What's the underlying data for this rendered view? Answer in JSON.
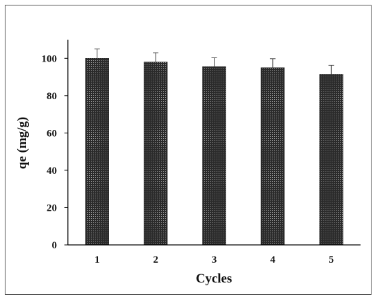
{
  "chart_data": {
    "type": "bar",
    "categories": [
      "1",
      "2",
      "3",
      "4",
      "5"
    ],
    "values": [
      100,
      98,
      95.5,
      95,
      91.5
    ],
    "error": [
      5,
      5,
      4.8,
      4.8,
      4.8
    ],
    "xlabel": "Cycles",
    "ylabel": "qe (mg/g)",
    "ylim": [
      0,
      110
    ],
    "yticks": [
      0,
      20,
      40,
      60,
      80,
      100
    ],
    "bar_fill": "dotted dark pattern",
    "colors": {
      "bar": "#2b2b2b",
      "bar_dot": "#9a9a9a",
      "axis": "#000000"
    },
    "grid": false,
    "legend": "none"
  }
}
